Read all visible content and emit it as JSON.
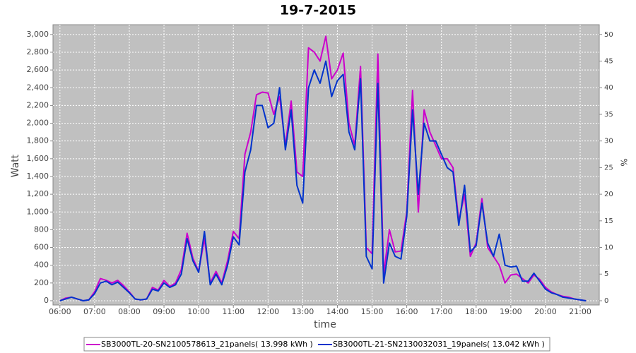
{
  "chart_data": {
    "type": "line",
    "title": "19-7-2015",
    "x_label": "time",
    "y_label": "Watt",
    "y2_label": "%",
    "x": [
      "06:00",
      "06:10",
      "06:20",
      "06:30",
      "06:40",
      "06:50",
      "07:00",
      "07:10",
      "07:20",
      "07:30",
      "07:40",
      "07:50",
      "08:00",
      "08:10",
      "08:20",
      "08:30",
      "08:40",
      "08:50",
      "09:00",
      "09:10",
      "09:20",
      "09:30",
      "09:40",
      "09:50",
      "10:00",
      "10:10",
      "10:20",
      "10:30",
      "10:40",
      "10:50",
      "11:00",
      "11:10",
      "11:20",
      "11:30",
      "11:40",
      "11:50",
      "12:00",
      "12:10",
      "12:20",
      "12:30",
      "12:40",
      "12:50",
      "13:00",
      "13:10",
      "13:20",
      "13:30",
      "13:40",
      "13:50",
      "14:00",
      "14:10",
      "14:20",
      "14:30",
      "14:40",
      "14:50",
      "15:00",
      "15:10",
      "15:20",
      "15:30",
      "15:40",
      "15:50",
      "16:00",
      "16:10",
      "16:20",
      "16:30",
      "16:40",
      "16:50",
      "17:00",
      "17:10",
      "17:20",
      "17:30",
      "17:40",
      "17:50",
      "18:00",
      "18:10",
      "18:20",
      "18:30",
      "18:40",
      "18:50",
      "19:00",
      "19:10",
      "19:20",
      "19:30",
      "19:40",
      "19:50",
      "20:00",
      "20:10",
      "20:20",
      "20:30",
      "20:40",
      "20:50",
      "21:00",
      "21:10"
    ],
    "series": [
      {
        "name": "SB3000TL-20-SN2100578613_21panels( 13.998 kWh )",
        "color": "#cc00cc",
        "values": [
          0,
          30,
          40,
          20,
          0,
          10,
          100,
          250,
          230,
          200,
          230,
          170,
          100,
          20,
          10,
          20,
          150,
          120,
          230,
          160,
          200,
          350,
          760,
          480,
          330,
          700,
          200,
          330,
          200,
          450,
          780,
          700,
          1650,
          1900,
          2320,
          2350,
          2340,
          2100,
          2300,
          1750,
          2250,
          1450,
          1400,
          2850,
          2800,
          2700,
          2980,
          2500,
          2600,
          2790,
          2000,
          1750,
          2640,
          600,
          530,
          2780,
          300,
          800,
          550,
          560,
          1000,
          2370,
          1000,
          2150,
          1900,
          1750,
          1600,
          1600,
          1500,
          900,
          1200,
          500,
          650,
          1150,
          600,
          500,
          400,
          200,
          290,
          300,
          250,
          200,
          290,
          240,
          150,
          100,
          70,
          50,
          40,
          20,
          10,
          0
        ]
      },
      {
        "name": "SB3000TL-21-SN2130032031_19panels( 13.042 kWh )",
        "color": "#0033cc",
        "values": [
          0,
          20,
          40,
          20,
          0,
          10,
          80,
          200,
          220,
          180,
          210,
          150,
          90,
          20,
          10,
          20,
          130,
          110,
          200,
          150,
          180,
          300,
          700,
          450,
          320,
          780,
          180,
          300,
          180,
          400,
          720,
          630,
          1450,
          1700,
          2200,
          2200,
          1950,
          2000,
          2400,
          1700,
          2150,
          1300,
          1100,
          2400,
          2600,
          2450,
          2700,
          2300,
          2480,
          2550,
          1900,
          1700,
          2500,
          500,
          360,
          2450,
          200,
          650,
          500,
          470,
          950,
          2150,
          1200,
          2000,
          1800,
          1800,
          1650,
          1500,
          1450,
          850,
          1300,
          550,
          620,
          1100,
          650,
          500,
          750,
          400,
          380,
          390,
          220,
          220,
          310,
          220,
          130,
          90,
          70,
          40,
          30,
          20,
          10,
          0
        ]
      }
    ],
    "xlim": [
      "05:48",
      "21:33"
    ],
    "xticks": [
      "06:00",
      "07:00",
      "08:00",
      "09:00",
      "10:00",
      "11:00",
      "12:00",
      "13:00",
      "14:00",
      "15:00",
      "16:00",
      "17:00",
      "18:00",
      "19:00",
      "20:00",
      "21:00"
    ],
    "ylim": [
      -48,
      3110
    ],
    "yticks": [
      0,
      200,
      400,
      600,
      800,
      {
        "value": 1000,
        "label": "1,000"
      },
      {
        "value": 1200,
        "label": "1,200"
      },
      {
        "value": 1400,
        "label": "1,400"
      },
      {
        "value": 1600,
        "label": "1,600"
      },
      {
        "value": 1800,
        "label": "1,800"
      },
      {
        "value": 2000,
        "label": "2,000"
      },
      {
        "value": 2200,
        "label": "2,200"
      },
      {
        "value": 2400,
        "label": "2,400"
      },
      {
        "value": 2600,
        "label": "2,600"
      },
      {
        "value": 2800,
        "label": "2,800"
      },
      {
        "value": 3000,
        "label": "3,000"
      }
    ],
    "y2lim": [
      -0.8,
      51.83
    ],
    "y2ticks": [
      0,
      5,
      10,
      15,
      20,
      25,
      30,
      35,
      40,
      45,
      50
    ],
    "grid": true
  }
}
